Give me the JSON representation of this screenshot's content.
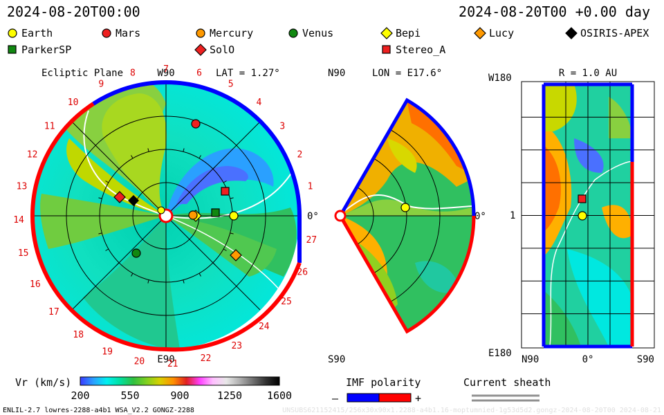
{
  "header": {
    "left_time": "2024-08-20T00:00",
    "right_time": "2024-08-20T00 +0.00 day"
  },
  "legend": {
    "items": [
      {
        "label": "Earth",
        "shape": "circle",
        "color": "#ffff00"
      },
      {
        "label": "Mars",
        "shape": "circle",
        "color": "#ee2020"
      },
      {
        "label": "Mercury",
        "shape": "circle",
        "color": "#ff9900"
      },
      {
        "label": "Venus",
        "shape": "circle",
        "color": "#118811"
      },
      {
        "label": "Bepi",
        "shape": "diamond",
        "color": "#ffff00"
      },
      {
        "label": "Lucy",
        "shape": "diamond",
        "color": "#ff9900"
      },
      {
        "label": "OSIRIS-APEX",
        "shape": "diamond",
        "color": "#000000"
      },
      {
        "label": "ParkerSP",
        "shape": "square",
        "color": "#118811"
      },
      {
        "label": "SolO",
        "shape": "diamond",
        "color": "#ee2020"
      },
      {
        "label": "Stereo_A",
        "shape": "square",
        "color": "#ee2020"
      }
    ]
  },
  "ecliptic": {
    "title": "Ecliptic Plane",
    "lat": "LAT = 1.27°",
    "top_label": "W90",
    "bottom_label": "E90",
    "right_label": "0°",
    "carrington_labels": [
      "1",
      "2",
      "3",
      "4",
      "5",
      "6",
      "7",
      "8",
      "9",
      "10",
      "11",
      "12",
      "13",
      "14",
      "15",
      "16",
      "17",
      "18",
      "19",
      "20",
      "21",
      "22",
      "23",
      "24",
      "25",
      "26",
      "27"
    ]
  },
  "meridional": {
    "lon": "LON = E17.6°",
    "top_label": "N90",
    "bottom_label": "S90",
    "right_label": "0°"
  },
  "radial": {
    "title": "R = 1.0 AU",
    "top_left": "W180",
    "bottom_left": "E180",
    "left_mid": "1",
    "x_labels": [
      "N90",
      "0°",
      "S90"
    ]
  },
  "colorbar": {
    "label": "Vr (km/s)",
    "ticks": [
      "200",
      "550",
      "900",
      "1250",
      "1600"
    ],
    "range": [
      200,
      1600
    ],
    "stops": [
      "#3a3aff",
      "#2aa0ff",
      "#00f0f0",
      "#00e0a0",
      "#30c040",
      "#80d020",
      "#d8d000",
      "#ff9000",
      "#e02020",
      "#ff40ff",
      "#ffc0ff",
      "#e8e8e8",
      "#b0b0b0",
      "#707070",
      "#303030",
      "#000000"
    ]
  },
  "imf": {
    "title": "IMF polarity",
    "minus": "–",
    "plus": "+",
    "neg_color": "#0000ff",
    "pos_color": "#ff0000"
  },
  "sheath": {
    "title": "Current sheath",
    "line_color": "#909090"
  },
  "footer": {
    "left": "ENLIL-2.7 lowres-2288-a4b1 WSA_V2.2 GONGZ-2288",
    "right": "UNSUBS621152415/256x30x90x1.2288-a4b1.16-moptumnied-1g53d5d2.gongz-2024-08-20T00   2024-08-21"
  }
}
